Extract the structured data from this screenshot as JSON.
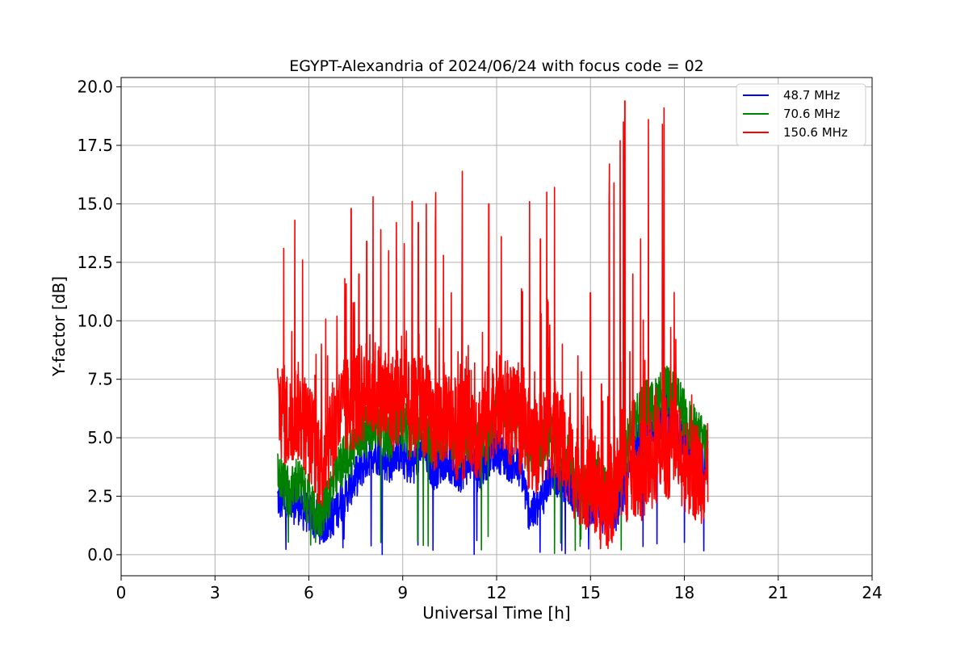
{
  "chart_data": {
    "type": "line",
    "title": "EGYPT-Alexandria of 2024/06/24 with focus code = 02",
    "xlabel": "Universal Time [h]",
    "ylabel": "Y-factor [dB]",
    "xlim": [
      0,
      24
    ],
    "ylim": [
      -0.9,
      20.4
    ],
    "xticks": [
      0,
      3,
      6,
      9,
      12,
      15,
      18,
      21,
      24
    ],
    "xtick_labels": [
      "0",
      "3",
      "6",
      "9",
      "12",
      "15",
      "18",
      "21",
      "24"
    ],
    "yticks": [
      0,
      2.5,
      5,
      7.5,
      10,
      12.5,
      15,
      17.5,
      20
    ],
    "ytick_labels": [
      "0.0",
      "2.5",
      "5.0",
      "7.5",
      "10.0",
      "12.5",
      "15.0",
      "17.5",
      "20.0"
    ],
    "grid": true,
    "legend_position": "top-right",
    "series": [
      {
        "name": "48.7 MHz",
        "color": "#0000ff",
        "x": [
          5.0,
          5.2,
          5.4,
          5.6,
          5.8,
          6.0,
          6.2,
          6.4,
          6.6,
          6.8,
          7.0,
          7.2,
          7.4,
          7.6,
          7.8,
          8.0,
          8.2,
          8.4,
          8.6,
          8.8,
          9.0,
          9.2,
          9.4,
          9.6,
          9.8,
          10.0,
          10.2,
          10.4,
          10.6,
          10.8,
          11.0,
          11.2,
          11.4,
          11.6,
          11.8,
          12.0,
          12.2,
          12.4,
          12.6,
          12.8,
          13.0,
          13.2,
          13.4,
          13.6,
          13.8,
          14.0,
          14.2,
          14.4,
          14.6,
          14.8,
          15.0,
          15.2,
          15.4,
          15.6,
          15.8,
          16.0,
          16.2,
          16.4,
          16.6,
          16.8,
          17.0,
          17.2,
          17.4,
          17.6,
          17.8,
          18.0,
          18.2,
          18.4,
          18.6,
          18.75
        ],
        "y": [
          2.4,
          2.2,
          2.0,
          2.3,
          1.9,
          1.8,
          1.5,
          1.3,
          1.4,
          1.7,
          2.2,
          2.6,
          3.1,
          3.5,
          4.0,
          4.4,
          4.3,
          4.1,
          3.9,
          4.5,
          4.2,
          3.8,
          4.0,
          4.6,
          4.1,
          3.6,
          3.9,
          4.2,
          3.7,
          3.5,
          3.8,
          4.1,
          3.4,
          3.9,
          4.3,
          4.5,
          4.2,
          4.0,
          3.8,
          3.6,
          2.0,
          1.8,
          2.2,
          3.0,
          3.5,
          3.3,
          3.1,
          2.8,
          2.4,
          2.3,
          2.0,
          2.2,
          1.8,
          2.0,
          1.7,
          2.4,
          3.2,
          4.5,
          5.0,
          5.6,
          5.3,
          5.8,
          6.0,
          5.7,
          5.2,
          4.8,
          4.5,
          4.3,
          4.0,
          4.2
        ]
      },
      {
        "name": "70.6 MHz",
        "color": "#008000",
        "x": [
          5.0,
          5.2,
          5.4,
          5.6,
          5.8,
          6.0,
          6.2,
          6.4,
          6.6,
          6.8,
          7.0,
          7.2,
          7.4,
          7.6,
          7.8,
          8.0,
          8.2,
          8.4,
          8.6,
          8.8,
          9.0,
          9.2,
          9.4,
          9.6,
          9.8,
          10.0,
          10.2,
          10.4,
          10.6,
          10.8,
          11.0,
          11.2,
          11.4,
          11.6,
          11.8,
          12.0,
          12.2,
          12.4,
          12.6,
          12.8,
          13.0,
          13.2,
          13.4,
          13.6,
          13.8,
          14.0,
          14.2,
          14.4,
          14.6,
          14.8,
          15.0,
          15.2,
          15.4,
          15.6,
          15.8,
          16.0,
          16.2,
          16.4,
          16.6,
          16.8,
          17.0,
          17.2,
          17.4,
          17.6,
          17.8,
          18.0,
          18.2,
          18.4,
          18.6,
          18.75
        ],
        "y": [
          3.5,
          3.0,
          2.5,
          3.2,
          2.8,
          2.3,
          1.5,
          1.8,
          2.5,
          3.0,
          3.8,
          4.2,
          4.5,
          5.0,
          5.2,
          5.5,
          5.6,
          5.3,
          5.0,
          5.8,
          5.5,
          5.2,
          5.4,
          5.7,
          5.1,
          4.8,
          5.0,
          5.5,
          4.9,
          4.6,
          5.0,
          5.3,
          4.7,
          5.1,
          5.6,
          6.0,
          6.5,
          6.3,
          6.0,
          5.7,
          4.5,
          4.2,
          4.8,
          5.0,
          5.3,
          4.6,
          4.2,
          3.8,
          3.4,
          3.2,
          3.0,
          3.4,
          2.8,
          3.0,
          2.6,
          3.8,
          4.8,
          5.8,
          6.2,
          6.5,
          6.3,
          6.8,
          7.0,
          6.9,
          6.5,
          6.0,
          5.5,
          5.2,
          4.8,
          4.6
        ]
      },
      {
        "name": "150.6 MHz",
        "color": "#ff0000",
        "x": [
          5.0,
          5.2,
          5.4,
          5.6,
          5.8,
          6.0,
          6.2,
          6.4,
          6.6,
          6.8,
          7.0,
          7.2,
          7.4,
          7.6,
          7.8,
          8.0,
          8.2,
          8.4,
          8.6,
          8.8,
          9.0,
          9.2,
          9.4,
          9.6,
          9.8,
          10.0,
          10.2,
          10.4,
          10.6,
          10.8,
          11.0,
          11.2,
          11.4,
          11.6,
          11.8,
          12.0,
          12.2,
          12.4,
          12.6,
          12.8,
          13.0,
          13.2,
          13.4,
          13.6,
          13.8,
          14.0,
          14.2,
          14.4,
          14.6,
          14.8,
          15.0,
          15.2,
          15.4,
          15.6,
          15.8,
          16.0,
          16.2,
          16.4,
          16.6,
          16.8,
          17.0,
          17.2,
          17.4,
          17.6,
          17.8,
          18.0,
          18.2,
          18.4,
          18.6,
          18.75
        ],
        "y": [
          6.5,
          6.0,
          5.5,
          6.2,
          5.8,
          5.3,
          4.5,
          4.0,
          4.8,
          5.5,
          6.0,
          6.3,
          6.5,
          6.8,
          7.0,
          7.2,
          7.0,
          6.6,
          6.3,
          6.8,
          6.5,
          6.0,
          6.3,
          6.6,
          6.0,
          5.5,
          5.8,
          6.2,
          5.6,
          5.2,
          5.5,
          5.8,
          5.2,
          5.6,
          6.2,
          6.5,
          6.3,
          6.0,
          5.8,
          5.5,
          5.0,
          4.6,
          5.0,
          5.3,
          5.5,
          4.8,
          4.3,
          3.8,
          3.5,
          3.3,
          3.2,
          3.0,
          2.0,
          2.5,
          2.8,
          3.5,
          3.6,
          3.8,
          3.5,
          3.8,
          4.0,
          4.3,
          4.6,
          4.5,
          4.2,
          4.0,
          3.8,
          3.6,
          3.5,
          3.4
        ],
        "peaks": [
          [
            5.2,
            13.1
          ],
          [
            5.55,
            14.3
          ],
          [
            5.8,
            12.6
          ],
          [
            6.4,
            9.0
          ],
          [
            6.6,
            8.5
          ],
          [
            6.9,
            10.2
          ],
          [
            7.15,
            11.8
          ],
          [
            7.35,
            14.8
          ],
          [
            7.6,
            12.0
          ],
          [
            7.85,
            13.4
          ],
          [
            8.05,
            15.3
          ],
          [
            8.3,
            13.9
          ],
          [
            8.55,
            13.0
          ],
          [
            8.8,
            14.2
          ],
          [
            9.05,
            13.3
          ],
          [
            9.3,
            15.1
          ],
          [
            9.5,
            14.2
          ],
          [
            9.75,
            15.0
          ],
          [
            10.05,
            14.0
          ],
          [
            10.3,
            12.8
          ],
          [
            10.55,
            11.2
          ],
          [
            10.9,
            12.6
          ],
          [
            11.3,
            8.2
          ],
          [
            11.55,
            9.5
          ],
          [
            11.75,
            15.0
          ],
          [
            12.15,
            13.6
          ],
          [
            12.35,
            8.3
          ],
          [
            12.8,
            11.0
          ],
          [
            13.05,
            15.1
          ],
          [
            13.4,
            13.5
          ],
          [
            13.6,
            15.5
          ],
          [
            13.85,
            15.7
          ],
          [
            14.1,
            9.0
          ],
          [
            14.35,
            6.9
          ],
          [
            14.6,
            8.5
          ],
          [
            15.0,
            11.2
          ],
          [
            15.35,
            7.3
          ],
          [
            15.6,
            15.1
          ],
          [
            15.75,
            15.9
          ],
          [
            15.95,
            17.7
          ],
          [
            16.05,
            18.5
          ],
          [
            16.1,
            19.4
          ],
          [
            16.35,
            12.0
          ],
          [
            16.6,
            13.5
          ],
          [
            16.85,
            18.6
          ],
          [
            17.05,
            6.8
          ],
          [
            17.3,
            18.4
          ],
          [
            17.35,
            19.1
          ]
        ]
      }
    ]
  }
}
